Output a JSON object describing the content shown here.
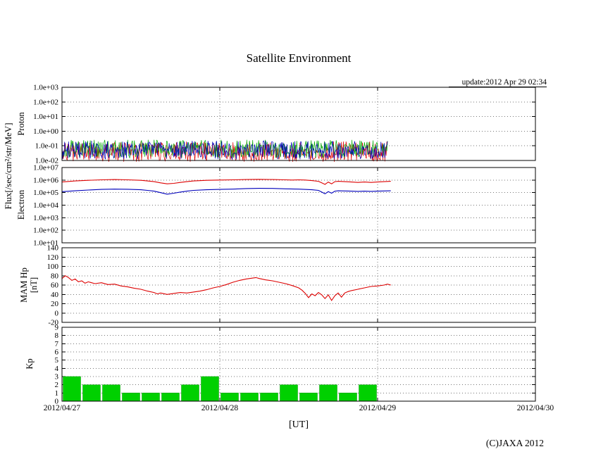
{
  "page": {
    "title": "Satellite Environment",
    "update_label": "update:2012 Apr 29 02:34",
    "xlabel": "[UT]",
    "copyright": "(C)JAXA 2012"
  },
  "chart_data": {
    "type": "line",
    "subtype": "multi-panel-time-series",
    "title": "Satellite Environment",
    "x_unit": "hours from 2012/04/27 00:00 UT",
    "x_range_hours": [
      0,
      72
    ],
    "grid": "dotted",
    "x_ticks": [
      {
        "hour": 0,
        "label": "2012/04/27"
      },
      {
        "hour": 24,
        "label": "2012/04/28"
      },
      {
        "hour": 48,
        "label": "2012/04/29"
      },
      {
        "hour": 72,
        "label": "2012/04/30"
      }
    ],
    "shared_ylabel": "Flux[/sec/cm²/str/MeV]",
    "panels": [
      {
        "id": "proton",
        "ylabel": "Proton",
        "yscale": "log",
        "ylim": [
          0.01,
          1000
        ],
        "ytick_values": [
          1000,
          100,
          10,
          1,
          0.1,
          0.01
        ],
        "ytick_labels": [
          "1.0e+03",
          "1.0e+02",
          "1.0e+01",
          "1.0e+00",
          "1.0e-01",
          "1.0e-02"
        ],
        "plot_style": "noise-band",
        "data_end_hour": 49.5,
        "series": [
          {
            "name": "proton-red",
            "color": "#dd0000",
            "band_min": 0.008,
            "band_max": 0.2
          },
          {
            "name": "proton-green",
            "color": "#00aa00",
            "band_min": 0.015,
            "band_max": 0.26
          },
          {
            "name": "proton-blue",
            "color": "#0000bb",
            "band_min": 0.012,
            "band_max": 0.22
          }
        ]
      },
      {
        "id": "electron",
        "ylabel": "Electron",
        "yscale": "log",
        "ylim": [
          10,
          10000000
        ],
        "ytick_values": [
          10000000,
          1000000,
          100000,
          10000,
          1000,
          100,
          10
        ],
        "ytick_labels": [
          "1.0e+07",
          "1.0e+06",
          "1.0e+05",
          "1.0e+04",
          "1.0e+03",
          "1.0e+02",
          "1.0e+01"
        ],
        "plot_style": "line",
        "series": [
          {
            "name": "electron-red-line",
            "color": "#dd0000",
            "points": [
              [
                0,
                700000.0
              ],
              [
                2,
                850000.0
              ],
              [
                4,
                950000.0
              ],
              [
                6,
                1050000.0
              ],
              [
                8,
                1100000.0
              ],
              [
                10,
                1050000.0
              ],
              [
                12,
                950000.0
              ],
              [
                13,
                850000.0
              ],
              [
                14,
                750000.0
              ],
              [
                15,
                600000.0
              ],
              [
                16,
                500000.0
              ],
              [
                17,
                550000.0
              ],
              [
                18,
                650000.0
              ],
              [
                19,
                750000.0
              ],
              [
                20,
                850000.0
              ],
              [
                22,
                950000.0
              ],
              [
                24,
                1000000.0
              ],
              [
                26,
                1050000.0
              ],
              [
                28,
                1100000.0
              ],
              [
                30,
                1150000.0
              ],
              [
                32,
                1100000.0
              ],
              [
                34,
                1050000.0
              ],
              [
                35,
                1000000.0
              ],
              [
                36,
                1050000.0
              ],
              [
                37,
                1000000.0
              ],
              [
                38,
                900000.0
              ],
              [
                39,
                800000.0
              ],
              [
                39.5,
                600000.0
              ],
              [
                40,
                450000.0
              ],
              [
                40.5,
                700000.0
              ],
              [
                41,
                500000.0
              ],
              [
                41.5,
                750000.0
              ],
              [
                42,
                800000.0
              ],
              [
                43,
                750000.0
              ],
              [
                44,
                700000.0
              ],
              [
                45,
                650000.0
              ],
              [
                46,
                700000.0
              ],
              [
                47,
                650000.0
              ],
              [
                48,
                700000.0
              ],
              [
                49,
                750000.0
              ],
              [
                50,
                800000.0
              ]
            ]
          },
          {
            "name": "electron-blue-line",
            "color": "#0000bb",
            "points": [
              [
                0,
                120000.0
              ],
              [
                2,
                140000.0
              ],
              [
                4,
                160000.0
              ],
              [
                6,
                180000.0
              ],
              [
                8,
                190000.0
              ],
              [
                10,
                185000.0
              ],
              [
                12,
                170000.0
              ],
              [
                13,
                150000.0
              ],
              [
                14,
                130000.0
              ],
              [
                15,
                100000.0
              ],
              [
                16,
                75000.0
              ],
              [
                17,
                90000.0
              ],
              [
                18,
                110000.0
              ],
              [
                19,
                130000.0
              ],
              [
                20,
                150000.0
              ],
              [
                22,
                170000.0
              ],
              [
                24,
                180000.0
              ],
              [
                26,
                190000.0
              ],
              [
                28,
                210000.0
              ],
              [
                30,
                220000.0
              ],
              [
                32,
                215000.0
              ],
              [
                34,
                200000.0
              ],
              [
                36,
                190000.0
              ],
              [
                38,
                170000.0
              ],
              [
                39,
                150000.0
              ],
              [
                39.5,
                110000.0
              ],
              [
                40,
                80000.0
              ],
              [
                40.5,
                120000.0
              ],
              [
                41,
                90000.0
              ],
              [
                41.5,
                130000.0
              ],
              [
                42,
                140000.0
              ],
              [
                43,
                135000.0
              ],
              [
                44,
                130000.0
              ],
              [
                45,
                125000.0
              ],
              [
                46,
                130000.0
              ],
              [
                47,
                125000.0
              ],
              [
                48,
                130000.0
              ],
              [
                49,
                135000.0
              ],
              [
                50,
                140000.0
              ]
            ]
          }
        ]
      },
      {
        "id": "mam-hp",
        "ylabel": "MAM Hp",
        "ylabel2": "[nT]",
        "yscale": "linear",
        "ylim": [
          -20,
          140
        ],
        "ytick_values": [
          140,
          120,
          100,
          80,
          60,
          40,
          20,
          0,
          -20
        ],
        "ytick_labels": [
          "140",
          "120",
          "100",
          "80",
          "60",
          "40",
          "20",
          "0",
          "-20"
        ],
        "plot_style": "line",
        "series": [
          {
            "name": "hp-red-line",
            "color": "#dd0000",
            "points": [
              [
                0,
                74
              ],
              [
                0.5,
                80
              ],
              [
                1,
                76
              ],
              [
                1.5,
                70
              ],
              [
                2,
                73
              ],
              [
                2.5,
                67
              ],
              [
                3,
                69
              ],
              [
                3.5,
                64
              ],
              [
                4,
                67
              ],
              [
                5,
                63
              ],
              [
                6,
                65
              ],
              [
                7,
                61
              ],
              [
                8,
                62
              ],
              [
                9,
                58
              ],
              [
                10,
                56
              ],
              [
                11,
                53
              ],
              [
                12,
                51
              ],
              [
                13,
                47
              ],
              [
                14,
                44
              ],
              [
                14.5,
                41
              ],
              [
                15,
                43
              ],
              [
                16,
                40
              ],
              [
                17,
                42
              ],
              [
                18,
                44
              ],
              [
                19,
                43
              ],
              [
                20,
                45
              ],
              [
                21,
                47
              ],
              [
                22,
                50
              ],
              [
                23,
                54
              ],
              [
                24,
                57
              ],
              [
                25,
                61
              ],
              [
                26,
                66
              ],
              [
                27,
                70
              ],
              [
                28,
                73
              ],
              [
                29,
                75
              ],
              [
                29.5,
                76
              ],
              [
                30,
                74
              ],
              [
                31,
                71
              ],
              [
                32,
                69
              ],
              [
                33,
                66
              ],
              [
                34,
                63
              ],
              [
                35,
                59
              ],
              [
                36,
                54
              ],
              [
                36.5,
                49
              ],
              [
                37,
                42
              ],
              [
                37.5,
                33
              ],
              [
                38,
                41
              ],
              [
                38.5,
                37
              ],
              [
                39,
                44
              ],
              [
                39.5,
                39
              ],
              [
                40,
                31
              ],
              [
                40.5,
                39
              ],
              [
                41,
                27
              ],
              [
                41.5,
                37
              ],
              [
                42,
                43
              ],
              [
                42.5,
                34
              ],
              [
                43,
                43
              ],
              [
                43.5,
                46
              ],
              [
                44,
                48
              ],
              [
                45,
                51
              ],
              [
                46,
                54
              ],
              [
                47,
                57
              ],
              [
                48,
                58
              ],
              [
                49,
                60
              ],
              [
                49.5,
                62
              ],
              [
                50,
                60
              ]
            ]
          }
        ]
      },
      {
        "id": "kp",
        "ylabel": "Kp",
        "yscale": "linear",
        "ylim": [
          0,
          9
        ],
        "ytick_values": [
          9,
          8,
          7,
          6,
          5,
          4,
          3,
          2,
          1,
          0
        ],
        "ytick_labels": [
          "9",
          "8",
          "7",
          "6",
          "5",
          "4",
          "3",
          "2",
          "1",
          "0"
        ],
        "plot_style": "bars",
        "bar_color": "#00d000",
        "bar_outline": "#009900",
        "bar_width_hours": 3,
        "bars": [
          {
            "start_hour": 0,
            "value": 3
          },
          {
            "start_hour": 3,
            "value": 2
          },
          {
            "start_hour": 6,
            "value": 2
          },
          {
            "start_hour": 9,
            "value": 1
          },
          {
            "start_hour": 12,
            "value": 1
          },
          {
            "start_hour": 15,
            "value": 1
          },
          {
            "start_hour": 18,
            "value": 2
          },
          {
            "start_hour": 21,
            "value": 3
          },
          {
            "start_hour": 24,
            "value": 1
          },
          {
            "start_hour": 27,
            "value": 1
          },
          {
            "start_hour": 30,
            "value": 1
          },
          {
            "start_hour": 33,
            "value": 2
          },
          {
            "start_hour": 36,
            "value": 1
          },
          {
            "start_hour": 39,
            "value": 2
          },
          {
            "start_hour": 42,
            "value": 1
          },
          {
            "start_hour": 45,
            "value": 2
          }
        ]
      }
    ]
  }
}
